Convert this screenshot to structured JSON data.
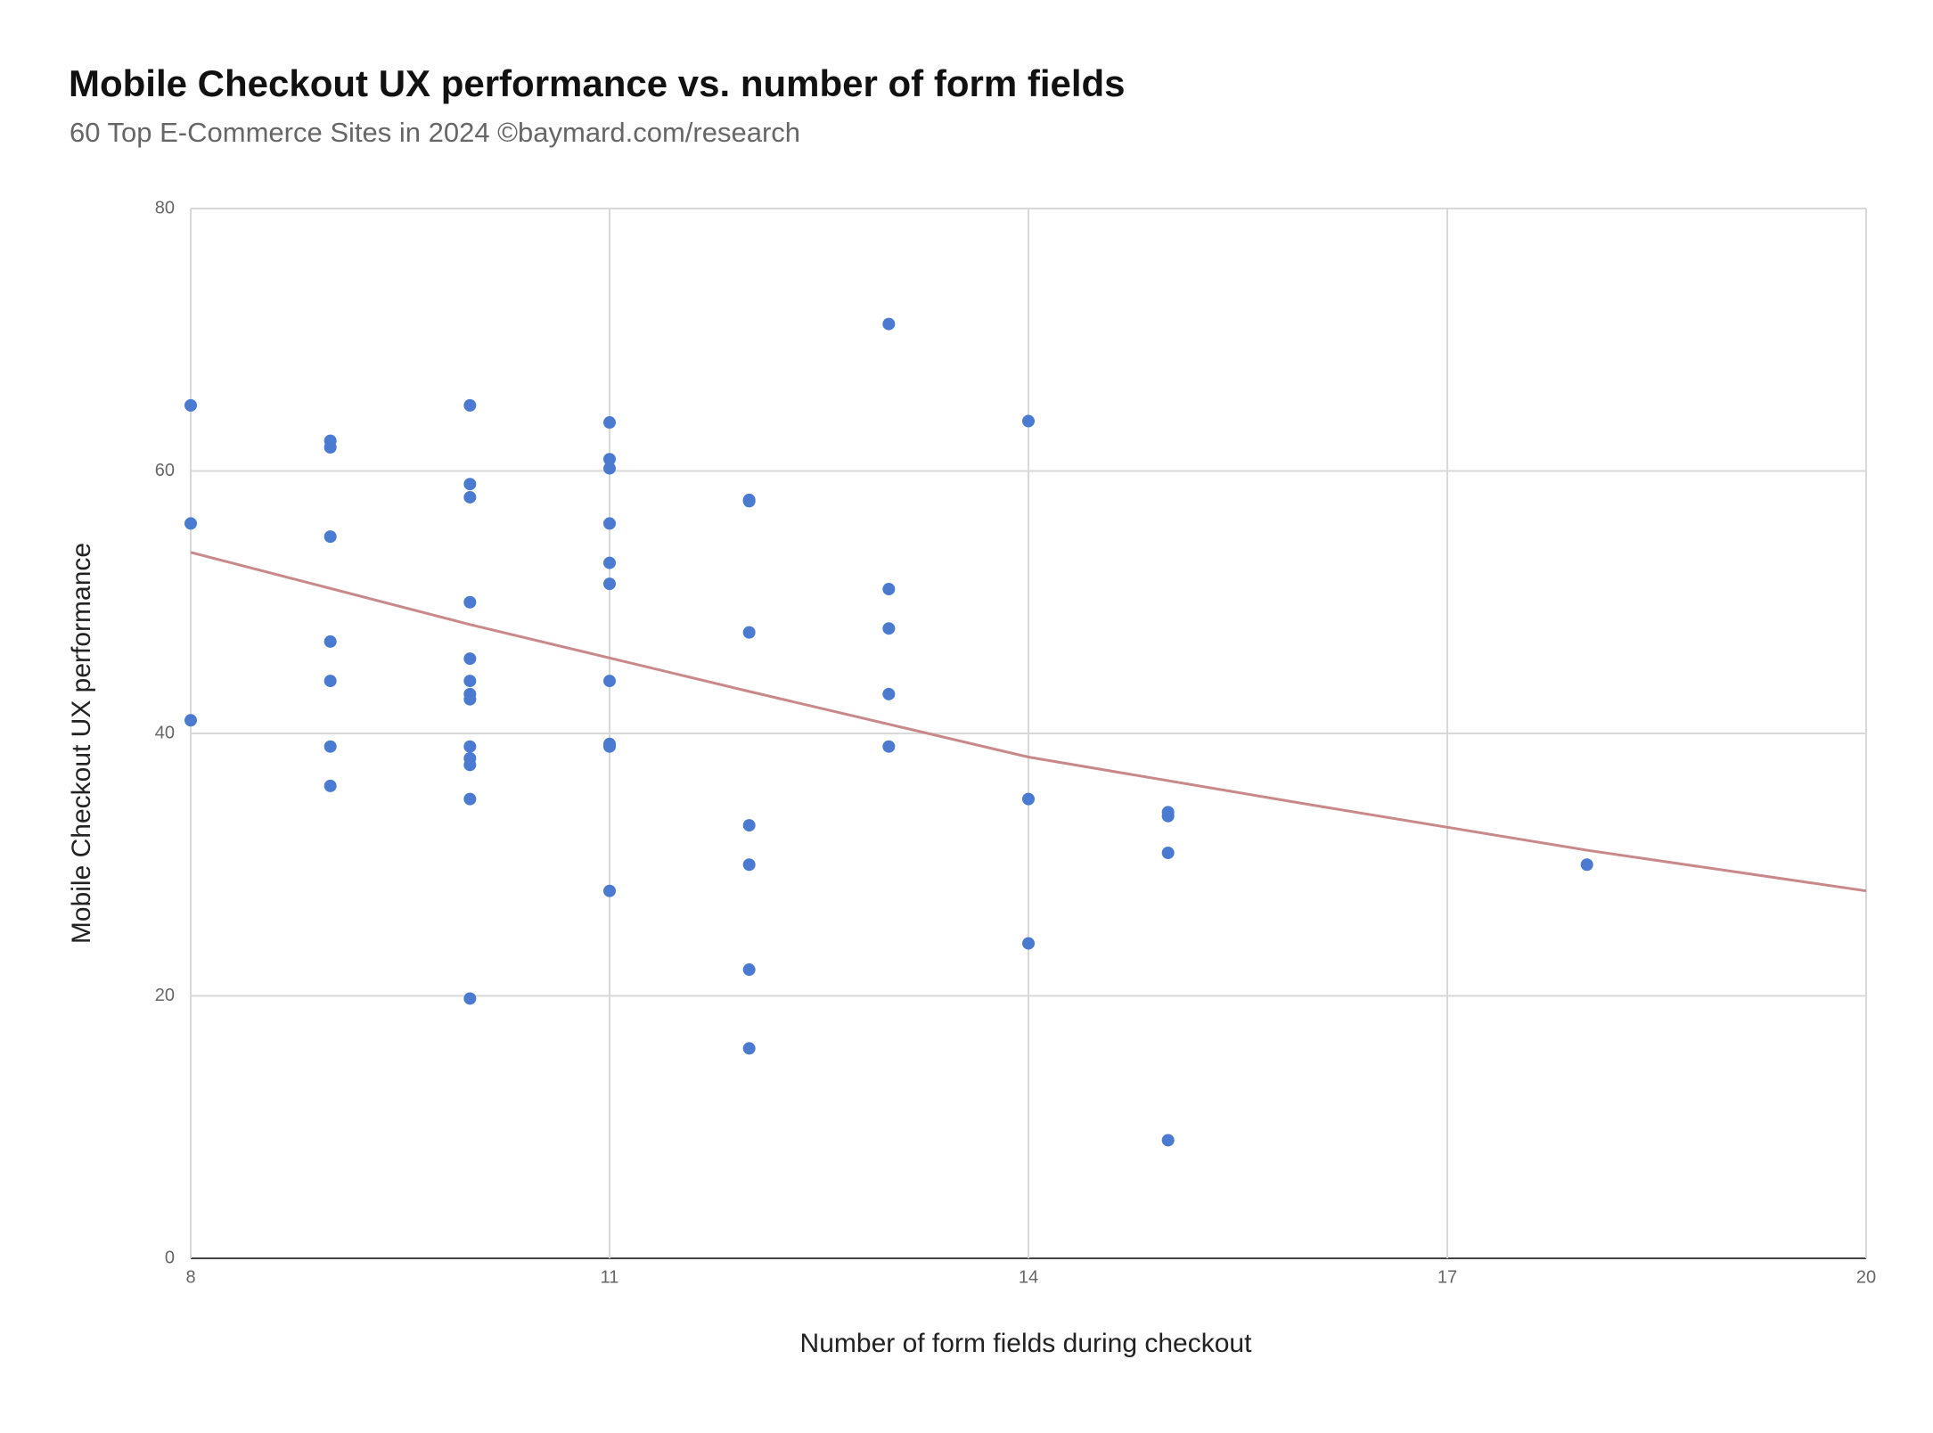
{
  "chart_data": {
    "type": "scatter",
    "title": "Mobile Checkout UX performance vs. number of form fields",
    "subtitle": "60 Top E-Commerce Sites in 2024  ©baymard.com/research",
    "x_label": "Number of form fields during checkout",
    "y_label": "Mobile Checkout UX performance",
    "color": "#4a7bd0",
    "x": [
      8,
      8,
      8,
      9,
      9,
      9,
      9,
      9,
      9,
      9,
      10,
      10,
      10,
      10,
      10,
      10,
      10,
      10,
      10,
      10,
      10,
      10,
      10,
      11,
      11,
      11,
      11,
      11,
      11,
      11,
      11,
      11,
      11,
      12,
      12,
      12,
      12,
      12,
      12,
      12,
      13,
      13,
      13,
      13,
      13,
      14,
      14,
      14,
      15,
      15,
      15,
      15,
      18
    ],
    "values": [
      65,
      56,
      41,
      62.3,
      61.8,
      55,
      47,
      44,
      39,
      36,
      65,
      59,
      58,
      50,
      45.7,
      44,
      43,
      42.6,
      39,
      38.1,
      37.6,
      35,
      19.8,
      63.7,
      60.9,
      60.2,
      56,
      53,
      51.4,
      44,
      39.2,
      39,
      28,
      57.8,
      57.7,
      47.7,
      33,
      30,
      22,
      16,
      71.2,
      51,
      48,
      43,
      39,
      63.8,
      35,
      24,
      34,
      33.7,
      30.9,
      9,
      30
    ],
    "trendline": {
      "color": "#c9888a",
      "x": [
        8,
        10,
        12,
        14,
        16,
        18,
        20
      ],
      "y": [
        53.8,
        48.3,
        43.2,
        38.2,
        34.6,
        31.1,
        28.0
      ]
    },
    "xlim": [
      8,
      20
    ],
    "xticks": [
      8,
      11,
      14,
      17,
      20
    ],
    "ylim": [
      0,
      80
    ],
    "yticks": [
      0,
      20,
      40,
      60,
      80
    ],
    "grid": true
  }
}
